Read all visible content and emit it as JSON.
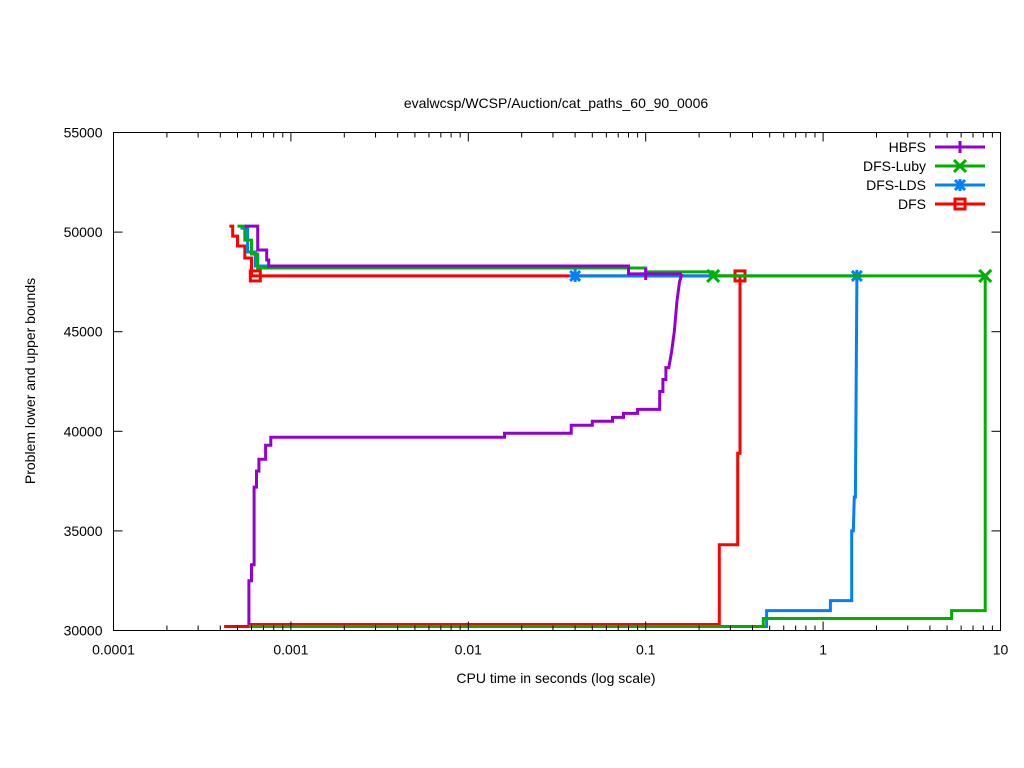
{
  "chart_data": {
    "type": "line",
    "title": "evalwcsp/WCSP/Auction/cat_paths_60_90_0006",
    "xlabel": "CPU time in seconds (log scale)",
    "ylabel": "Problem lower and upper bounds",
    "x_scale": "log",
    "xlim": [
      0.0001,
      10
    ],
    "ylim": [
      30000,
      55000
    ],
    "x_ticks": [
      0.0001,
      0.001,
      0.01,
      0.1,
      1,
      10
    ],
    "x_tick_labels": [
      "0.0001",
      "0.001",
      "0.01",
      "0.1",
      "1",
      "10"
    ],
    "y_ticks": [
      30000,
      35000,
      40000,
      45000,
      50000,
      55000
    ],
    "y_tick_labels": [
      "30000",
      "35000",
      "40000",
      "45000",
      "50000",
      "55000"
    ],
    "grid": false,
    "legend_position": "top-right",
    "series": [
      {
        "name": "HBFS",
        "color": "#9400d3",
        "marker": "plus",
        "upper_bound": [
          [
            0.00055,
            50300
          ],
          [
            0.00065,
            50300
          ],
          [
            0.00065,
            49100
          ],
          [
            0.00073,
            49100
          ],
          [
            0.00073,
            48600
          ],
          [
            0.00075,
            48600
          ],
          [
            0.00075,
            48300
          ],
          [
            0.08,
            48300
          ],
          [
            0.08,
            47900
          ],
          [
            0.16,
            47900
          ]
        ],
        "lower_bound": [
          [
            0.00058,
            30300
          ],
          [
            0.00058,
            32500
          ],
          [
            0.0006,
            32500
          ],
          [
            0.0006,
            33300
          ],
          [
            0.00062,
            33300
          ],
          [
            0.00062,
            37200
          ],
          [
            0.00064,
            37200
          ],
          [
            0.00064,
            38000
          ],
          [
            0.00066,
            38000
          ],
          [
            0.00066,
            38600
          ],
          [
            0.00072,
            38600
          ],
          [
            0.00072,
            39300
          ],
          [
            0.00077,
            39300
          ],
          [
            0.00077,
            39700
          ],
          [
            0.016,
            39700
          ],
          [
            0.016,
            39900
          ],
          [
            0.038,
            39900
          ],
          [
            0.038,
            40300
          ],
          [
            0.05,
            40300
          ],
          [
            0.05,
            40500
          ],
          [
            0.065,
            40500
          ],
          [
            0.065,
            40700
          ],
          [
            0.075,
            40700
          ],
          [
            0.075,
            40900
          ],
          [
            0.09,
            40900
          ],
          [
            0.09,
            41100
          ],
          [
            0.12,
            41100
          ],
          [
            0.12,
            42000
          ],
          [
            0.125,
            42000
          ],
          [
            0.125,
            42600
          ],
          [
            0.13,
            42600
          ],
          [
            0.13,
            43200
          ],
          [
            0.135,
            43200
          ],
          [
            0.14,
            44000
          ],
          [
            0.145,
            45000
          ],
          [
            0.15,
            46500
          ],
          [
            0.155,
            47500
          ],
          [
            0.16,
            47900
          ]
        ],
        "markers": [
          [
            0.1,
            47900
          ]
        ]
      },
      {
        "name": "DFS-Luby",
        "color": "#00b000",
        "marker": "x",
        "upper_bound": [
          [
            0.0005,
            50300
          ],
          [
            0.00055,
            50300
          ],
          [
            0.00055,
            49600
          ],
          [
            0.0006,
            49600
          ],
          [
            0.0006,
            48900
          ],
          [
            0.00065,
            48900
          ],
          [
            0.00065,
            48200
          ],
          [
            0.1,
            48200
          ],
          [
            0.1,
            48000
          ],
          [
            0.24,
            48000
          ],
          [
            0.24,
            47800
          ],
          [
            8.2,
            47800
          ]
        ],
        "lower_bound": [
          [
            0.00058,
            30200
          ],
          [
            0.46,
            30200
          ],
          [
            0.46,
            30600
          ],
          [
            5.3,
            30600
          ],
          [
            5.3,
            31000
          ],
          [
            8.2,
            31000
          ],
          [
            8.2,
            47800
          ]
        ],
        "markers": [
          [
            0.24,
            47800
          ],
          [
            8.2,
            47800
          ]
        ]
      },
      {
        "name": "DFS-LDS",
        "color": "#0080ff",
        "marker": "asterisk",
        "upper_bound": [
          [
            0.00052,
            50200
          ],
          [
            0.00057,
            50200
          ],
          [
            0.00057,
            49000
          ],
          [
            0.00063,
            49000
          ],
          [
            0.00063,
            48300
          ],
          [
            0.04,
            48300
          ],
          [
            0.04,
            47800
          ],
          [
            1.55,
            47800
          ]
        ],
        "lower_bound": [
          [
            0.00058,
            30200
          ],
          [
            0.48,
            30200
          ],
          [
            0.48,
            31000
          ],
          [
            1.1,
            31000
          ],
          [
            1.1,
            31500
          ],
          [
            1.45,
            31500
          ],
          [
            1.45,
            35000
          ],
          [
            1.48,
            35000
          ],
          [
            1.5,
            36700
          ],
          [
            1.52,
            36700
          ],
          [
            1.55,
            47800
          ]
        ],
        "markers": [
          [
            0.04,
            47800
          ],
          [
            1.55,
            47800
          ]
        ]
      },
      {
        "name": "DFS",
        "color": "#ff0000",
        "marker": "square",
        "upper_bound": [
          [
            0.00045,
            50300
          ],
          [
            0.00047,
            50300
          ],
          [
            0.00047,
            49800
          ],
          [
            0.0005,
            49800
          ],
          [
            0.0005,
            49300
          ],
          [
            0.00055,
            49300
          ],
          [
            0.00055,
            48700
          ],
          [
            0.0006,
            48700
          ],
          [
            0.0006,
            47800
          ],
          [
            0.34,
            47800
          ]
        ],
        "lower_bound": [
          [
            0.00042,
            30200
          ],
          [
            0.00058,
            30200
          ],
          [
            0.00058,
            30300
          ],
          [
            0.26,
            30300
          ],
          [
            0.26,
            34300
          ],
          [
            0.33,
            34300
          ],
          [
            0.33,
            38900
          ],
          [
            0.34,
            38900
          ],
          [
            0.34,
            47800
          ]
        ],
        "markers": [
          [
            0.00063,
            47800
          ],
          [
            0.34,
            47800
          ]
        ]
      }
    ]
  }
}
